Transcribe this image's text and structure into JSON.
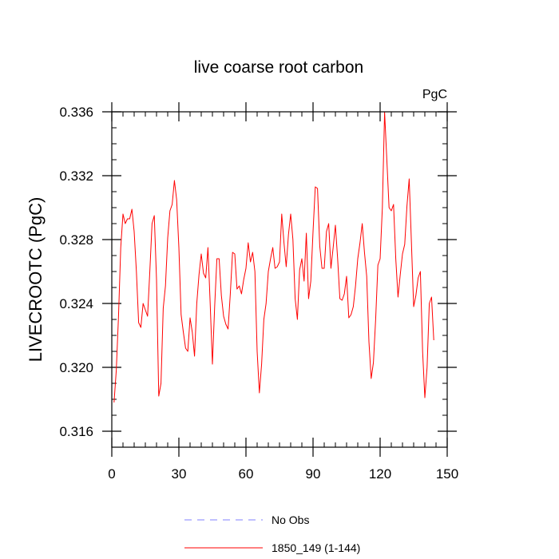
{
  "chart_data": {
    "type": "line",
    "title": "live coarse root carbon",
    "units_label": "PgC",
    "xlabel": "",
    "ylabel": "LIVECROOTC  (PgC)",
    "xlim": [
      0,
      150
    ],
    "ylim": [
      0.315,
      0.336
    ],
    "xticks": [
      0,
      30,
      60,
      90,
      120,
      150
    ],
    "xtick_labels": [
      "0",
      "30",
      "60",
      "90",
      "120",
      "150"
    ],
    "yticks": [
      0.316,
      0.32,
      0.324,
      0.328,
      0.332,
      0.336
    ],
    "ytick_labels": [
      "0.316",
      "0.320",
      "0.324",
      "0.328",
      "0.332",
      "0.336"
    ],
    "legend": [
      {
        "label": "No Obs",
        "color": "#8080ff",
        "style": "dashed"
      },
      {
        "label": "1850_149 (1-144)",
        "color": "#ff0000",
        "style": "solid"
      }
    ],
    "series": [
      {
        "name": "1850_149 (1-144)",
        "color": "#ff0000",
        "x": [
          1,
          2,
          3,
          4,
          5,
          6,
          7,
          8,
          9,
          10,
          11,
          12,
          13,
          14,
          15,
          16,
          17,
          18,
          19,
          20,
          21,
          22,
          23,
          24,
          25,
          26,
          27,
          28,
          29,
          30,
          31,
          32,
          33,
          34,
          35,
          36,
          37,
          38,
          39,
          40,
          41,
          42,
          43,
          44,
          45,
          46,
          47,
          48,
          49,
          50,
          51,
          52,
          53,
          54,
          55,
          56,
          57,
          58,
          59,
          60,
          61,
          62,
          63,
          64,
          65,
          66,
          67,
          68,
          69,
          70,
          71,
          72,
          73,
          74,
          75,
          76,
          77,
          78,
          79,
          80,
          81,
          82,
          83,
          84,
          85,
          86,
          87,
          88,
          89,
          90,
          91,
          92,
          93,
          94,
          95,
          96,
          97,
          98,
          99,
          100,
          101,
          102,
          103,
          104,
          105,
          106,
          107,
          108,
          109,
          110,
          111,
          112,
          113,
          114,
          115,
          116,
          117,
          118,
          119,
          120,
          121,
          122,
          123,
          124,
          125,
          126,
          127,
          128,
          129,
          130,
          131,
          132,
          133,
          134,
          135,
          136,
          137,
          138,
          139,
          140,
          141,
          142,
          143,
          144
        ],
        "y": [
          0.3178,
          0.3198,
          0.3232,
          0.3275,
          0.3296,
          0.329,
          0.3293,
          0.3293,
          0.3299,
          0.3285,
          0.326,
          0.3228,
          0.3225,
          0.324,
          0.3236,
          0.3232,
          0.326,
          0.329,
          0.3295,
          0.3255,
          0.3182,
          0.319,
          0.3237,
          0.3251,
          0.3281,
          0.3298,
          0.3302,
          0.3317,
          0.3305,
          0.3275,
          0.3233,
          0.3222,
          0.3212,
          0.321,
          0.3231,
          0.3222,
          0.3207,
          0.324,
          0.3258,
          0.3271,
          0.3259,
          0.3256,
          0.3275,
          0.324,
          0.3202,
          0.3238,
          0.3268,
          0.3268,
          0.3245,
          0.3232,
          0.3227,
          0.3224,
          0.3246,
          0.3272,
          0.3271,
          0.3249,
          0.3251,
          0.3246,
          0.3255,
          0.3262,
          0.3278,
          0.3266,
          0.3272,
          0.326,
          0.321,
          0.3184,
          0.3202,
          0.323,
          0.324,
          0.326,
          0.3268,
          0.3275,
          0.3262,
          0.3263,
          0.3266,
          0.3296,
          0.3278,
          0.3263,
          0.3283,
          0.3296,
          0.328,
          0.3243,
          0.323,
          0.3261,
          0.3268,
          0.3254,
          0.3284,
          0.3243,
          0.3254,
          0.3285,
          0.3313,
          0.3312,
          0.3276,
          0.3262,
          0.3262,
          0.3285,
          0.329,
          0.3262,
          0.3275,
          0.3289,
          0.3268,
          0.3243,
          0.3242,
          0.3246,
          0.3257,
          0.3231,
          0.3233,
          0.3238,
          0.3251,
          0.3268,
          0.3278,
          0.329,
          0.3272,
          0.3257,
          0.3216,
          0.3193,
          0.3203,
          0.323,
          0.3264,
          0.3268,
          0.33,
          0.336,
          0.333,
          0.33,
          0.3298,
          0.3302,
          0.3268,
          0.3244,
          0.3258,
          0.3271,
          0.3277,
          0.3301,
          0.3318,
          0.3278,
          0.3238,
          0.3245,
          0.3256,
          0.326,
          0.321,
          0.3181,
          0.32,
          0.324,
          0.3244,
          0.3217
        ]
      }
    ]
  }
}
